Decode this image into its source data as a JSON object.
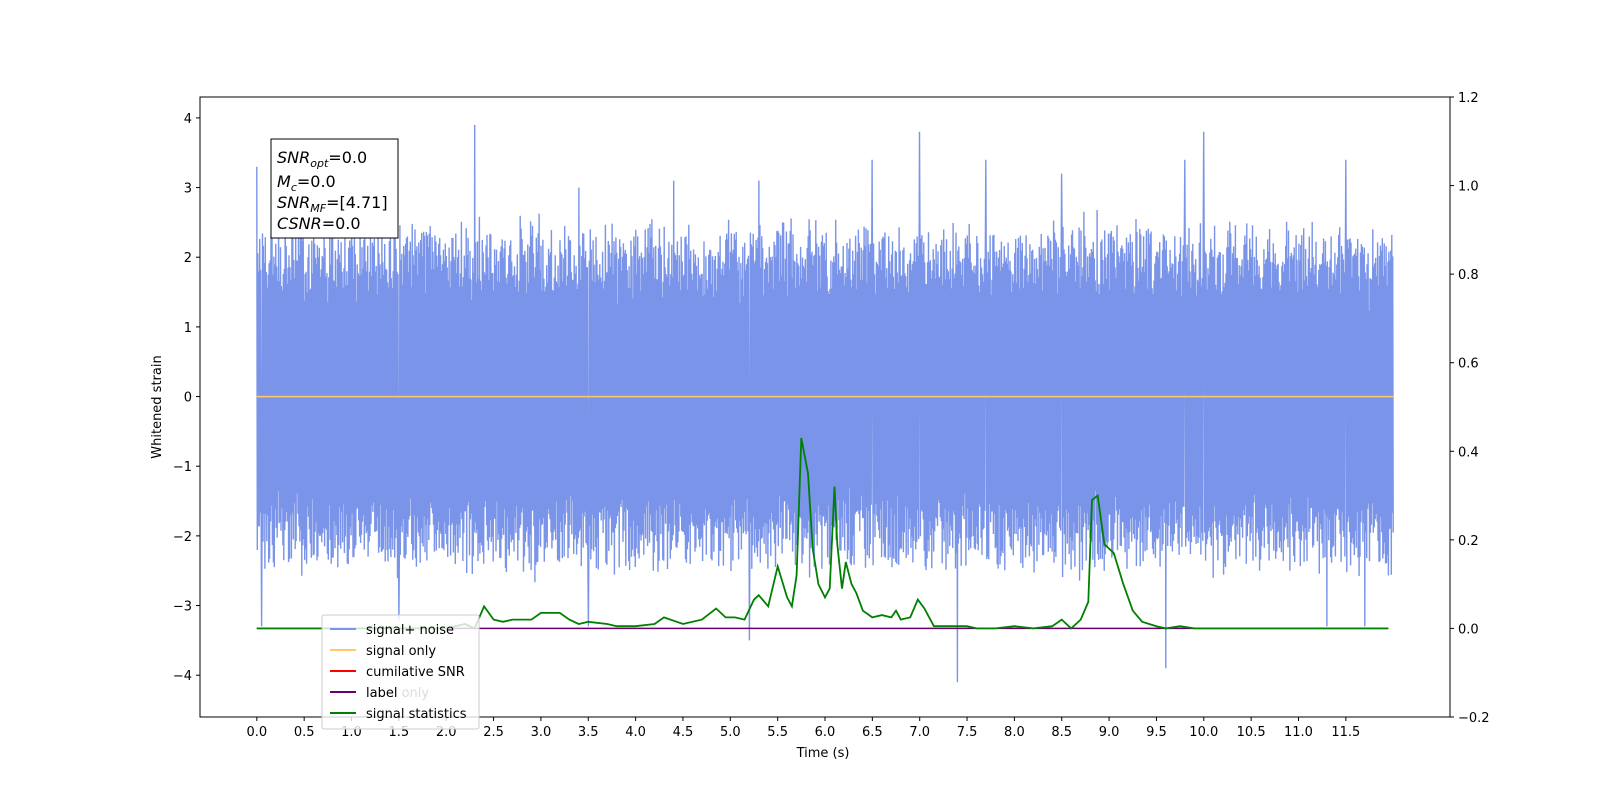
{
  "chart_data": {
    "type": "line",
    "xlabel": "Time (s)",
    "ylabel": "Whitened strain",
    "xlim": [
      -0.6,
      12.6
    ],
    "ylim": [
      -4.6,
      4.3
    ],
    "y2lim": [
      -0.2,
      1.2
    ],
    "x_ticks": [
      "0.0",
      "0.5",
      "1.0",
      "1.5",
      "2.0",
      "2.5",
      "3.0",
      "3.5",
      "4.0",
      "4.5",
      "5.0",
      "5.5",
      "6.0",
      "6.5",
      "7.0",
      "7.5",
      "8.0",
      "8.5",
      "9.0",
      "9.5",
      "10.0",
      "10.5",
      "11.0",
      "11.5"
    ],
    "y_ticks": [
      "4",
      "3",
      "2",
      "1",
      "0",
      "−1",
      "−2",
      "−3",
      "−4"
    ],
    "y2_ticks": [
      "1.2",
      "1.0",
      "0.8",
      "0.6",
      "0.4",
      "0.2",
      "0.0",
      "−0.2"
    ],
    "legend": {
      "placement": "lower-left",
      "entries": [
        {
          "label": "signal+ noise",
          "color": "#7994e8"
        },
        {
          "label": "signal only",
          "color": "#ffc966"
        },
        {
          "label": "cumilative SNR",
          "color": "#ff0000"
        },
        {
          "label": "label",
          "color": "#6a006a"
        },
        {
          "label": "signal statistics",
          "color": "#008000"
        }
      ],
      "hidden_behind": [
        "label only"
      ]
    },
    "annotation": {
      "snr_opt": {
        "sym": "SNR",
        "sub": "opt",
        "val": "=0.0"
      },
      "mc": {
        "sym": "M",
        "sub": "c",
        "val": "=0.0"
      },
      "snr_mf": {
        "sym": "SNR",
        "sub": "MF",
        "val": "=[4.71]"
      },
      "csnr": {
        "sym": "CSNR",
        "val": "=0.0"
      }
    },
    "series": [
      {
        "name": "signal+ noise",
        "axis": "left",
        "color": "#7994e8",
        "kind": "noise",
        "x_range": [
          0.0,
          12.0
        ],
        "typical_amplitude": 2.4,
        "peaks": [
          {
            "x": 0.0,
            "y": 3.3
          },
          {
            "x": 0.3,
            "y": 3.2
          },
          {
            "x": 1.0,
            "y": 3.0
          },
          {
            "x": 1.45,
            "y": 3.1
          },
          {
            "x": 2.3,
            "y": 3.9
          },
          {
            "x": 3.4,
            "y": 3.0
          },
          {
            "x": 4.4,
            "y": 3.1
          },
          {
            "x": 5.3,
            "y": 3.1
          },
          {
            "x": 6.5,
            "y": 3.4
          },
          {
            "x": 7.0,
            "y": 3.8
          },
          {
            "x": 7.7,
            "y": 3.4
          },
          {
            "x": 8.5,
            "y": 3.2
          },
          {
            "x": 9.8,
            "y": 3.4
          },
          {
            "x": 10.0,
            "y": 3.8
          },
          {
            "x": 11.5,
            "y": 3.4
          }
        ],
        "troughs": [
          {
            "x": 0.05,
            "y": -3.3
          },
          {
            "x": 1.5,
            "y": -3.2
          },
          {
            "x": 3.5,
            "y": -3.3
          },
          {
            "x": 5.2,
            "y": -3.5
          },
          {
            "x": 7.4,
            "y": -4.1
          },
          {
            "x": 9.6,
            "y": -3.9
          },
          {
            "x": 11.3,
            "y": -3.3
          },
          {
            "x": 11.7,
            "y": -3.3
          }
        ]
      },
      {
        "name": "signal only",
        "axis": "left",
        "color": "#ffc966",
        "x": [
          0.0,
          12.0
        ],
        "y": [
          0.0,
          0.0
        ]
      },
      {
        "name": "label",
        "axis": "right",
        "color": "#6a006a",
        "x": [
          0.0,
          11.95
        ],
        "y": [
          0.0,
          0.0
        ]
      },
      {
        "name": "signal statistics",
        "axis": "right",
        "color": "#008000",
        "x": [
          0.0,
          2.0,
          2.2,
          2.3,
          2.4,
          2.5,
          2.6,
          2.7,
          2.8,
          2.9,
          3.0,
          3.2,
          3.3,
          3.4,
          3.5,
          3.7,
          3.8,
          4.0,
          4.2,
          4.3,
          4.5,
          4.7,
          4.85,
          4.95,
          5.05,
          5.15,
          5.25,
          5.3,
          5.4,
          5.5,
          5.6,
          5.65,
          5.7,
          5.75,
          5.82,
          5.87,
          5.93,
          6.0,
          6.05,
          6.1,
          6.13,
          6.18,
          6.22,
          6.28,
          6.33,
          6.4,
          6.5,
          6.6,
          6.7,
          6.75,
          6.8,
          6.9,
          6.98,
          7.05,
          7.15,
          7.25,
          7.35,
          7.5,
          7.6,
          7.8,
          8.0,
          8.2,
          8.4,
          8.5,
          8.6,
          8.7,
          8.78,
          8.82,
          8.88,
          8.95,
          9.05,
          9.15,
          9.25,
          9.35,
          9.5,
          9.6,
          9.75,
          9.9,
          10.1,
          11.95
        ],
        "y": [
          0.0,
          0.0,
          0.01,
          0.0,
          0.05,
          0.02,
          0.015,
          0.02,
          0.02,
          0.02,
          0.035,
          0.035,
          0.02,
          0.01,
          0.015,
          0.01,
          0.005,
          0.005,
          0.01,
          0.025,
          0.01,
          0.02,
          0.045,
          0.025,
          0.025,
          0.02,
          0.065,
          0.075,
          0.05,
          0.14,
          0.07,
          0.05,
          0.12,
          0.43,
          0.35,
          0.18,
          0.1,
          0.07,
          0.09,
          0.32,
          0.19,
          0.09,
          0.15,
          0.1,
          0.08,
          0.04,
          0.025,
          0.03,
          0.025,
          0.04,
          0.02,
          0.025,
          0.065,
          0.045,
          0.005,
          0.005,
          0.005,
          0.005,
          0.0,
          0.0,
          0.005,
          0.0,
          0.005,
          0.02,
          0.0,
          0.02,
          0.06,
          0.29,
          0.3,
          0.19,
          0.17,
          0.1,
          0.04,
          0.015,
          0.005,
          0.0,
          0.005,
          0.0,
          0.0,
          0.0
        ]
      }
    ]
  }
}
